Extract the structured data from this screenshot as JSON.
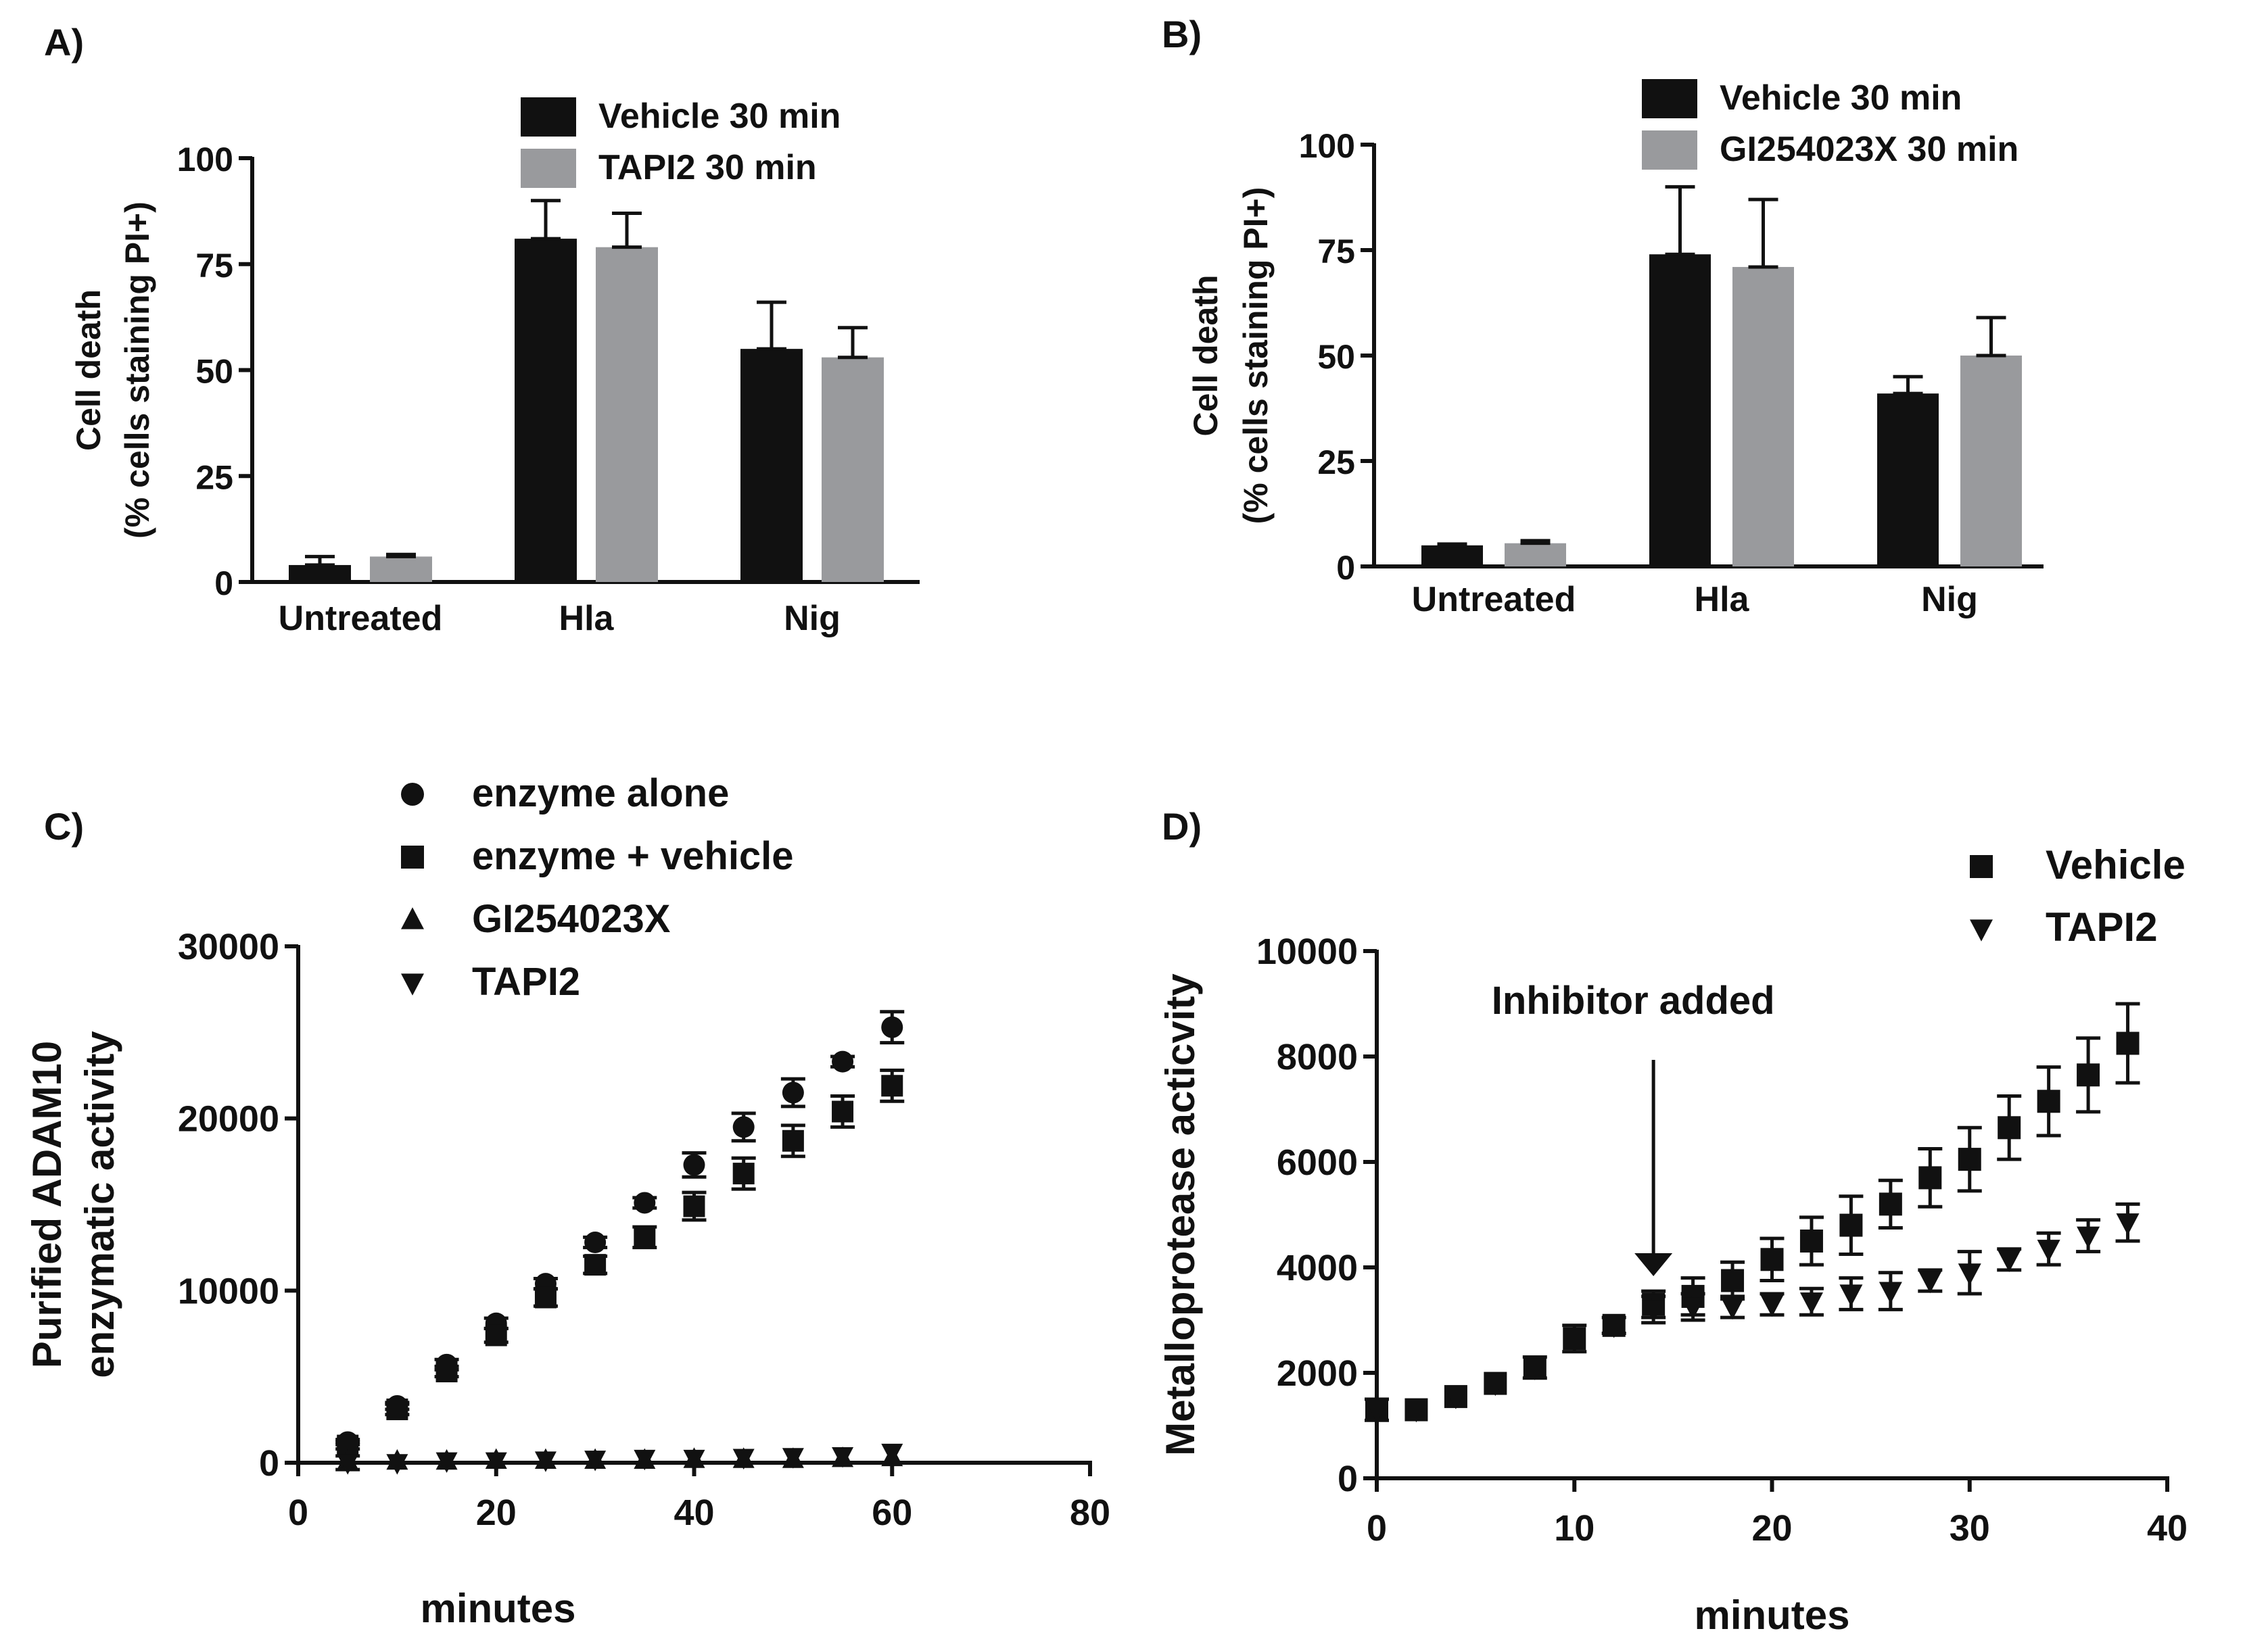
{
  "chart_data": [
    {
      "id": "A",
      "panel_label": "A)",
      "type": "bar",
      "title": "",
      "xlabel": "",
      "ylabel_line1": "Cell death",
      "ylabel_line2": "(% cells staining PI+)",
      "categories": [
        "Untreated",
        "Hla",
        "Nig"
      ],
      "ylim": [
        0,
        100
      ],
      "yticks": [
        0,
        25,
        50,
        75,
        100
      ],
      "series": [
        {
          "name": "Vehicle 30 min",
          "color": "#111111",
          "values": [
            4,
            81,
            55
          ],
          "errors": [
            2,
            9,
            11
          ]
        },
        {
          "name": "TAPI2 30 min",
          "color": "#999a9d",
          "values": [
            6,
            79,
            53
          ],
          "errors": [
            0.5,
            8,
            7
          ]
        }
      ]
    },
    {
      "id": "B",
      "panel_label": "B)",
      "type": "bar",
      "title": "",
      "xlabel": "",
      "ylabel_line1": "Cell death",
      "ylabel_line2": "(% cells staining PI+)",
      "categories": [
        "Untreated",
        "Hla",
        "Nig"
      ],
      "ylim": [
        0,
        100
      ],
      "yticks": [
        0,
        25,
        50,
        75,
        100
      ],
      "series": [
        {
          "name": "Vehicle 30 min",
          "color": "#111111",
          "values": [
            5,
            74,
            41
          ],
          "errors": [
            0.3,
            16,
            4
          ]
        },
        {
          "name": "GI254023X 30 min",
          "color": "#999a9d",
          "values": [
            5.5,
            71,
            50
          ],
          "errors": [
            0.6,
            16,
            9
          ]
        }
      ]
    },
    {
      "id": "C",
      "panel_label": "C)",
      "type": "scatter",
      "title": "",
      "xlabel": "minutes",
      "ylabel_line1": "Purified ADAM10",
      "ylabel_line2": "enzymatic activity",
      "xlim": [
        0,
        80
      ],
      "xticks": [
        0,
        20,
        40,
        60,
        80
      ],
      "ylim": [
        0,
        30000
      ],
      "yticks": [
        0,
        10000,
        20000,
        30000
      ],
      "series": [
        {
          "name": "enzyme alone",
          "marker": "circle",
          "x": [
            5,
            10,
            15,
            20,
            25,
            30,
            35,
            40,
            45,
            50,
            55,
            60
          ],
          "y": [
            1200,
            3300,
            5700,
            8100,
            10400,
            12800,
            15100,
            17300,
            19500,
            21500,
            23300,
            25300
          ],
          "errors": [
            150,
            200,
            300,
            300,
            300,
            300,
            300,
            700,
            800,
            800,
            300,
            900
          ]
        },
        {
          "name": "enzyme + vehicle",
          "marker": "square",
          "x": [
            5,
            10,
            15,
            20,
            25,
            30,
            35,
            40,
            45,
            50,
            55,
            60
          ],
          "y": [
            1000,
            3100,
            5300,
            7400,
            9600,
            11500,
            13100,
            14900,
            16800,
            18700,
            20400,
            21900
          ],
          "errors": [
            200,
            300,
            300,
            400,
            500,
            500,
            600,
            800,
            900,
            900,
            900,
            900
          ]
        },
        {
          "name": "GI254023X",
          "marker": "triangle-up",
          "x": [
            5,
            10,
            15,
            20,
            25,
            30,
            35,
            40,
            45,
            50,
            55,
            60
          ],
          "y": [
            100,
            100,
            100,
            150,
            150,
            150,
            150,
            200,
            200,
            200,
            250,
            300
          ],
          "errors": [
            0,
            0,
            0,
            0,
            0,
            0,
            0,
            0,
            0,
            0,
            0,
            0
          ]
        },
        {
          "name": "TAPI2",
          "marker": "triangle-down",
          "x": [
            5,
            10,
            15,
            20,
            25,
            30,
            35,
            40,
            45,
            50,
            55,
            60
          ],
          "y": [
            0,
            0,
            100,
            100,
            150,
            200,
            250,
            250,
            300,
            350,
            400,
            600
          ],
          "errors": [
            400,
            0,
            0,
            0,
            0,
            0,
            0,
            0,
            0,
            0,
            0,
            0
          ]
        }
      ]
    },
    {
      "id": "D",
      "panel_label": "D)",
      "type": "scatter",
      "title": "",
      "xlabel": "minutes",
      "ylabel_line1": "Metalloprotease acticvity",
      "ylabel_line2": "",
      "annotation": "Inhibitor added",
      "annotation_x": 14,
      "xlim": [
        0,
        40
      ],
      "xticks": [
        0,
        10,
        20,
        30,
        40
      ],
      "ylim": [
        0,
        10000
      ],
      "yticks": [
        0,
        2000,
        4000,
        6000,
        8000,
        10000
      ],
      "series": [
        {
          "name": "Vehicle",
          "marker": "square",
          "x": [
            0,
            2,
            4,
            6,
            8,
            10,
            12,
            14,
            16,
            18,
            20,
            22,
            24,
            26,
            28,
            30,
            32,
            34,
            36,
            38
          ],
          "y": [
            1300,
            1300,
            1550,
            1800,
            2100,
            2650,
            2900,
            3300,
            3450,
            3750,
            4150,
            4500,
            4800,
            5200,
            5700,
            6050,
            6650,
            7150,
            7650,
            8250
          ],
          "errors": [
            200,
            0,
            0,
            0,
            200,
            250,
            150,
            250,
            350,
            350,
            400,
            450,
            550,
            450,
            550,
            600,
            600,
            650,
            700,
            750
          ]
        },
        {
          "name": "TAPI2",
          "marker": "triangle-down",
          "x": [
            0,
            2,
            4,
            6,
            8,
            10,
            12,
            14,
            16,
            18,
            20,
            22,
            24,
            26,
            28,
            30,
            32,
            34,
            36,
            38
          ],
          "y": [
            1300,
            1300,
            1550,
            1800,
            2100,
            2650,
            2900,
            3200,
            3250,
            3250,
            3300,
            3350,
            3500,
            3550,
            3750,
            3900,
            4150,
            4350,
            4600,
            4850
          ],
          "errors": [
            0,
            0,
            0,
            0,
            0,
            0,
            0,
            250,
            250,
            200,
            200,
            250,
            300,
            350,
            200,
            400,
            200,
            300,
            300,
            350
          ]
        }
      ]
    }
  ]
}
